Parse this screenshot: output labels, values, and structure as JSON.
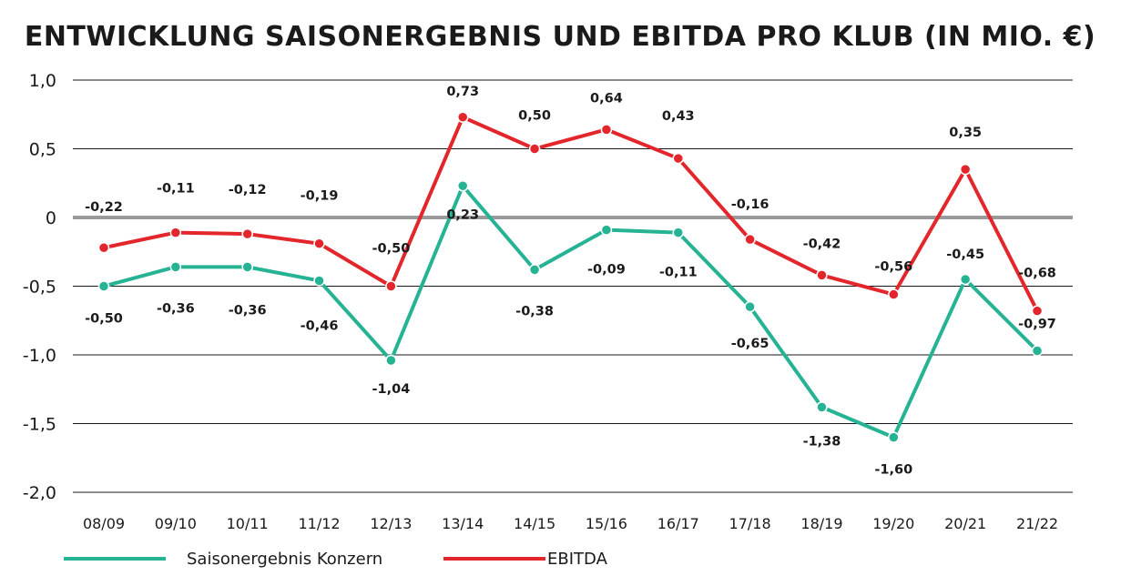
{
  "chart_data": {
    "type": "line",
    "title": "ENTWICKLUNG SAISONERGEBNIS UND EBITDA PRO KLUB (IN MIO. €)",
    "categories": [
      "08/09",
      "09/10",
      "10/11",
      "11/12",
      "12/13",
      "13/14",
      "14/15",
      "15/16",
      "16/17",
      "17/18",
      "18/19",
      "19/20",
      "20/21",
      "21/22"
    ],
    "ylim": [
      -2.0,
      1.0
    ],
    "yticks": [
      1.0,
      0.5,
      0,
      -0.5,
      -1.0,
      -1.5,
      -2.0
    ],
    "ytick_labels": [
      "1,0",
      "0,5",
      "0",
      "-0,5",
      "-1,0",
      "-1,5",
      "-2,0"
    ],
    "grid": true,
    "legend_position": "bottom-left",
    "series": [
      {
        "name": "Saisonergebnis Konzern",
        "color": "#26b394",
        "values": [
          -0.5,
          -0.36,
          -0.36,
          -0.46,
          -1.04,
          0.23,
          -0.38,
          -0.09,
          -0.11,
          -0.65,
          -1.38,
          -1.6,
          -0.45,
          -0.97
        ],
        "labels": [
          "-0,50",
          "-0,36",
          "-0,36",
          "-0,46",
          "-1,04",
          "0,23",
          "-0,38",
          "-0,09",
          "-0,11",
          "-0,65",
          "-1,38",
          "-1,60",
          "-0,45",
          "-0,97"
        ]
      },
      {
        "name": "EBITDA",
        "color": "#e3262b",
        "values": [
          -0.22,
          -0.11,
          -0.12,
          -0.19,
          -0.5,
          0.73,
          0.5,
          0.64,
          0.43,
          -0.16,
          -0.42,
          -0.56,
          0.35,
          -0.68
        ],
        "labels": [
          "-0,22",
          "-0,11",
          "-0,12",
          "-0,19",
          "-0,50",
          "0,73",
          "0,50",
          "0,64",
          "0,43",
          "-0,16",
          "-0,42",
          "-0,56",
          "0,35",
          "-0,68"
        ]
      }
    ]
  }
}
